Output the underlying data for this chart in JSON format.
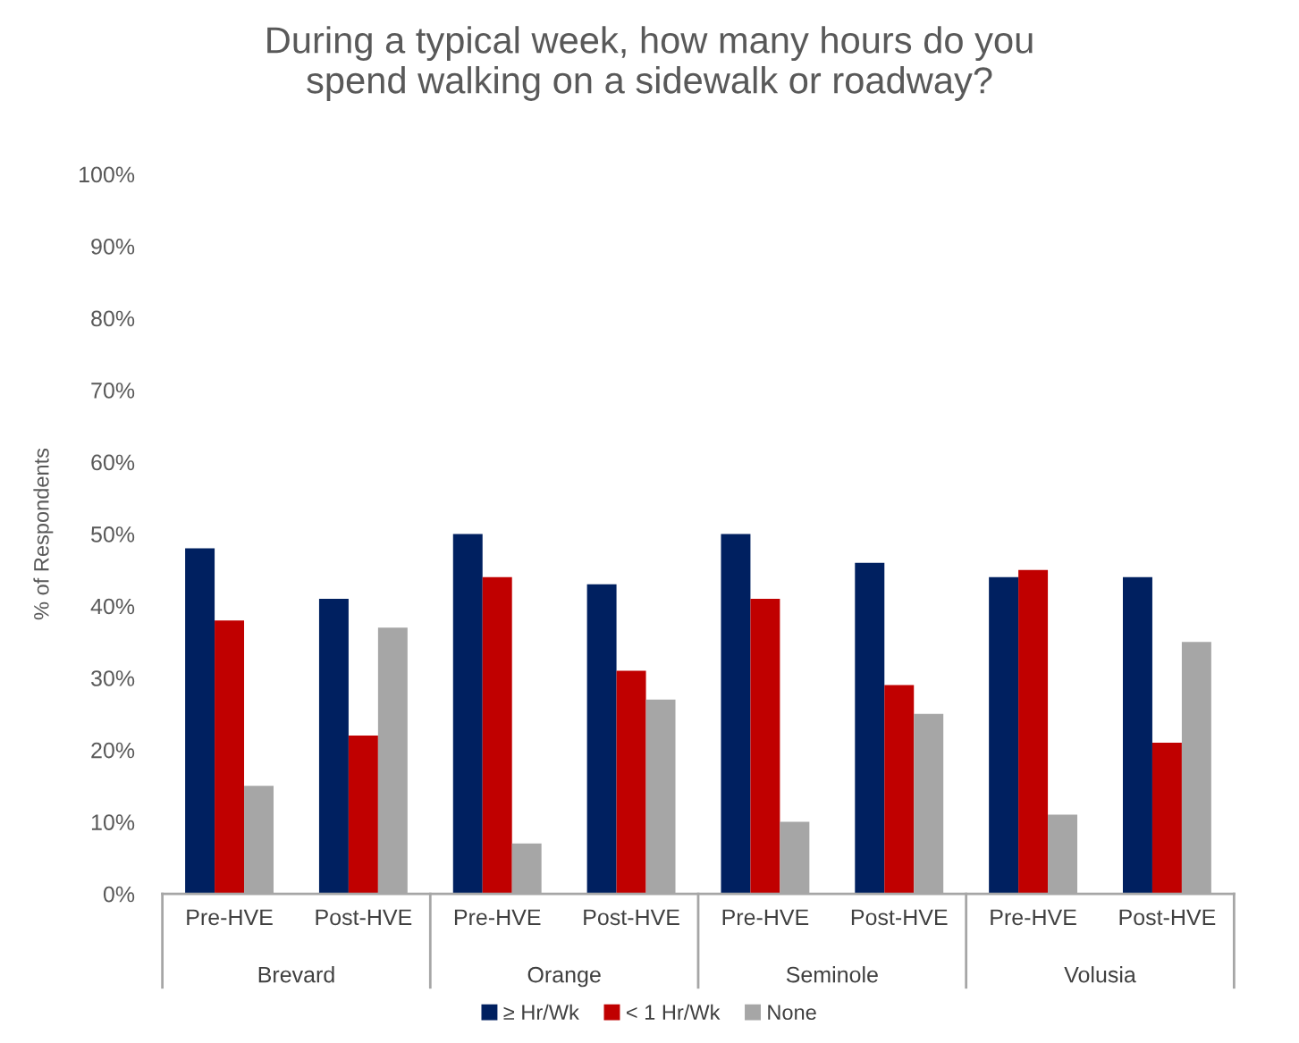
{
  "chart_data": {
    "type": "bar",
    "title": "During a typical week, how many hours do you\nspend walking on a sidewalk or roadway?",
    "ylabel": "% of Respondents",
    "categories": [
      "Pre-HVE",
      "Post-HVE",
      "Pre-HVE",
      "Post-HVE",
      "Pre-HVE",
      "Post-HVE",
      "Pre-HVE",
      "Post-HVE"
    ],
    "annotations": [
      "Brevard",
      "Orange",
      "Seminole",
      "Volusia"
    ],
    "series": [
      {
        "name": "≥ Hr/Wk",
        "color": "#002060",
        "values": [
          48,
          41,
          50,
          43,
          50,
          46,
          44,
          44
        ]
      },
      {
        "name": "< 1 Hr/Wk",
        "color": "#c00000",
        "values": [
          38,
          22,
          44,
          31,
          41,
          29,
          45,
          21
        ]
      },
      {
        "name": "None",
        "color": "#a6a6a6",
        "values": [
          15,
          37,
          7,
          27,
          10,
          25,
          11,
          35
        ]
      }
    ],
    "ylim": [
      0,
      100
    ],
    "yticks": [
      {
        "value": 0,
        "label": "0%"
      },
      {
        "value": 10,
        "label": "10%"
      },
      {
        "value": 20,
        "label": "20%"
      },
      {
        "value": 30,
        "label": "30%"
      },
      {
        "value": 40,
        "label": "40%"
      },
      {
        "value": 50,
        "label": "50%"
      },
      {
        "value": 60,
        "label": "60%"
      },
      {
        "value": 70,
        "label": "70%"
      },
      {
        "value": 80,
        "label": "80%"
      },
      {
        "value": 90,
        "label": "90%"
      },
      {
        "value": 100,
        "label": "100%"
      }
    ],
    "grid": false,
    "legend": "bottom"
  }
}
